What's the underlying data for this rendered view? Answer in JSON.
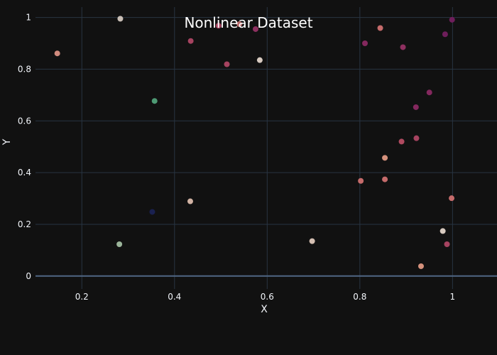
{
  "chart_data": {
    "type": "scatter",
    "title": "Nonlinear Dataset",
    "xlabel": "X",
    "ylabel": "Y",
    "xlim": [
      0.1,
      1.05
    ],
    "ylim": [
      -0.05,
      1.04
    ],
    "x_ticks": [
      0.2,
      0.4,
      0.6,
      0.8,
      1
    ],
    "x_tick_labels": [
      "0.2",
      "0.4",
      "0.6",
      "0.8",
      "1"
    ],
    "y_ticks": [
      0,
      0.2,
      0.4,
      0.6,
      0.8,
      1
    ],
    "y_tick_labels": [
      "0",
      "0.2",
      "0.4",
      "0.6",
      "0.8",
      "1"
    ],
    "grid": true,
    "legend": "none",
    "background": "#111111",
    "points": [
      {
        "x": 0.147,
        "y": 0.861,
        "color": "#d08a7d"
      },
      {
        "x": 0.283,
        "y": 0.995,
        "color": "#c9bfb6"
      },
      {
        "x": 0.281,
        "y": 0.123,
        "color": "#9bb59a"
      },
      {
        "x": 0.352,
        "y": 0.248,
        "color": "#1a2150"
      },
      {
        "x": 0.357,
        "y": 0.677,
        "color": "#4e9a74"
      },
      {
        "x": 0.434,
        "y": 0.289,
        "color": "#d2b3a4"
      },
      {
        "x": 0.435,
        "y": 0.909,
        "color": "#a64360"
      },
      {
        "x": 0.495,
        "y": 0.968,
        "color": "#a64360"
      },
      {
        "x": 0.513,
        "y": 0.819,
        "color": "#a64360"
      },
      {
        "x": 0.54,
        "y": 0.974,
        "color": "#b86a6a"
      },
      {
        "x": 0.575,
        "y": 0.955,
        "color": "#8e3060"
      },
      {
        "x": 0.584,
        "y": 0.835,
        "color": "#d7cac0"
      },
      {
        "x": 0.697,
        "y": 0.135,
        "color": "#d4bfb2"
      },
      {
        "x": 0.802,
        "y": 0.368,
        "color": "#c56b6b"
      },
      {
        "x": 0.811,
        "y": 0.9,
        "color": "#84285e"
      },
      {
        "x": 0.844,
        "y": 0.959,
        "color": "#c56b6b"
      },
      {
        "x": 0.854,
        "y": 0.457,
        "color": "#d5917c"
      },
      {
        "x": 0.854,
        "y": 0.374,
        "color": "#c56b6b"
      },
      {
        "x": 0.89,
        "y": 0.52,
        "color": "#b04a60"
      },
      {
        "x": 0.893,
        "y": 0.885,
        "color": "#8e3060"
      },
      {
        "x": 0.921,
        "y": 0.653,
        "color": "#84285e"
      },
      {
        "x": 0.922,
        "y": 0.533,
        "color": "#a64360"
      },
      {
        "x": 0.932,
        "y": 0.038,
        "color": "#d5917c"
      },
      {
        "x": 0.95,
        "y": 0.71,
        "color": "#84285e"
      },
      {
        "x": 0.979,
        "y": 0.174,
        "color": "#d7cac0"
      },
      {
        "x": 0.984,
        "y": 0.935,
        "color": "#6e1e5b"
      },
      {
        "x": 0.988,
        "y": 0.123,
        "color": "#a64360"
      },
      {
        "x": 0.998,
        "y": 0.301,
        "color": "#c56b6b"
      },
      {
        "x": 0.999,
        "y": 0.991,
        "color": "#6e1e5b"
      }
    ]
  }
}
